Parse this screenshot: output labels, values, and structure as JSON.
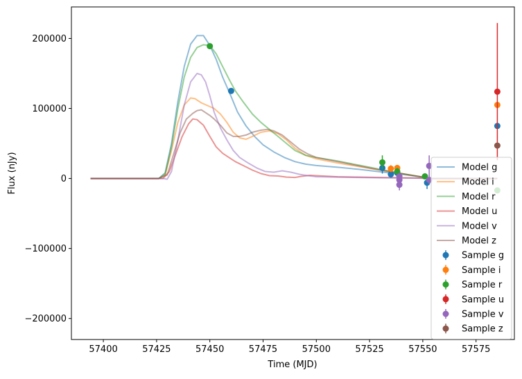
{
  "chart_data": {
    "type": "line",
    "title": "",
    "xlabel": "Time (MJD)",
    "ylabel": "Flux (nJy)",
    "xlim": [
      57385,
      57593
    ],
    "ylim": [
      -230000,
      245000
    ],
    "xticks": [
      57400,
      57425,
      57450,
      57475,
      57500,
      57525,
      57550,
      57575
    ],
    "yticks": [
      -200000,
      -100000,
      0,
      100000,
      200000
    ],
    "xtick_labels": [
      "57400",
      "57425",
      "57450",
      "57475",
      "57500",
      "57525",
      "57550",
      "57575"
    ],
    "ytick_labels": [
      "−200000",
      "−100000",
      "0",
      "100000",
      "200000"
    ],
    "grid": false,
    "legend_position": "lower-right",
    "colors": {
      "g": "#1f77b4",
      "i": "#ff7f0e",
      "r": "#2ca02c",
      "u": "#d62728",
      "v": "#9467bd",
      "z": "#8c564b"
    },
    "models": [
      {
        "name": "Model g",
        "band": "g",
        "points": [
          [
            57394,
            0
          ],
          [
            57426,
            0
          ],
          [
            57429,
            8000
          ],
          [
            57432,
            50000
          ],
          [
            57435,
            110000
          ],
          [
            57438,
            160000
          ],
          [
            57441,
            192000
          ],
          [
            57444,
            204000
          ],
          [
            57447,
            204000
          ],
          [
            57450,
            190000
          ],
          [
            57453,
            170000
          ],
          [
            57456,
            145000
          ],
          [
            57460,
            117000
          ],
          [
            57463,
            95000
          ],
          [
            57467,
            75000
          ],
          [
            57471,
            60000
          ],
          [
            57475,
            48000
          ],
          [
            57480,
            38000
          ],
          [
            57485,
            30000
          ],
          [
            57490,
            24000
          ],
          [
            57495,
            20500
          ],
          [
            57500,
            18500
          ],
          [
            57510,
            16000
          ],
          [
            57520,
            13000
          ],
          [
            57530,
            9500
          ],
          [
            57540,
            6000
          ],
          [
            57550,
            2000
          ],
          [
            57553,
            0
          ],
          [
            57585,
            0
          ]
        ]
      },
      {
        "name": "Model i",
        "band": "i",
        "points": [
          [
            57394,
            0
          ],
          [
            57426,
            0
          ],
          [
            57429,
            5000
          ],
          [
            57432,
            40000
          ],
          [
            57435,
            80000
          ],
          [
            57438,
            105000
          ],
          [
            57441,
            115000
          ],
          [
            57443,
            114000
          ],
          [
            57446,
            108000
          ],
          [
            57449,
            104000
          ],
          [
            57452,
            100000
          ],
          [
            57455,
            92000
          ],
          [
            57458,
            80000
          ],
          [
            57461,
            66000
          ],
          [
            57464,
            58000
          ],
          [
            57467,
            56000
          ],
          [
            57470,
            60000
          ],
          [
            57474,
            66000
          ],
          [
            57478,
            68000
          ],
          [
            57482,
            64000
          ],
          [
            57486,
            55000
          ],
          [
            57490,
            43000
          ],
          [
            57495,
            33000
          ],
          [
            57500,
            28000
          ],
          [
            57505,
            25000
          ],
          [
            57510,
            22000
          ],
          [
            57520,
            17000
          ],
          [
            57530,
            12000
          ],
          [
            57540,
            7000
          ],
          [
            57550,
            2000
          ],
          [
            57553,
            0
          ],
          [
            57585,
            0
          ]
        ]
      },
      {
        "name": "Model r",
        "band": "r",
        "points": [
          [
            57394,
            0
          ],
          [
            57426,
            0
          ],
          [
            57429,
            6000
          ],
          [
            57432,
            45000
          ],
          [
            57435,
            100000
          ],
          [
            57438,
            145000
          ],
          [
            57441,
            173000
          ],
          [
            57444,
            187000
          ],
          [
            57447,
            191000
          ],
          [
            57450,
            190000
          ],
          [
            57453,
            178000
          ],
          [
            57456,
            160000
          ],
          [
            57459,
            142000
          ],
          [
            57462,
            125000
          ],
          [
            57466,
            108000
          ],
          [
            57470,
            92000
          ],
          [
            57474,
            80000
          ],
          [
            57478,
            70000
          ],
          [
            57482,
            60000
          ],
          [
            57486,
            50000
          ],
          [
            57490,
            40000
          ],
          [
            57495,
            33000
          ],
          [
            57500,
            30000
          ],
          [
            57505,
            27500
          ],
          [
            57510,
            25000
          ],
          [
            57520,
            19000
          ],
          [
            57530,
            13000
          ],
          [
            57540,
            7000
          ],
          [
            57550,
            2000
          ],
          [
            57553,
            0
          ],
          [
            57585,
            0
          ]
        ]
      },
      {
        "name": "Model u",
        "band": "u",
        "points": [
          [
            57394,
            0
          ],
          [
            57428,
            0
          ],
          [
            57431,
            10000
          ],
          [
            57434,
            35000
          ],
          [
            57437,
            60000
          ],
          [
            57440,
            78000
          ],
          [
            57442,
            85000
          ],
          [
            57444,
            84000
          ],
          [
            57447,
            76000
          ],
          [
            57450,
            60000
          ],
          [
            57453,
            45000
          ],
          [
            57456,
            36000
          ],
          [
            57459,
            30000
          ],
          [
            57462,
            24000
          ],
          [
            57466,
            18000
          ],
          [
            57470,
            12000
          ],
          [
            57474,
            7000
          ],
          [
            57478,
            4000
          ],
          [
            57482,
            3500
          ],
          [
            57486,
            2000
          ],
          [
            57490,
            1500
          ],
          [
            57493,
            3000
          ],
          [
            57497,
            4500
          ],
          [
            57500,
            4000
          ],
          [
            57510,
            2500
          ],
          [
            57520,
            2000
          ],
          [
            57530,
            1500
          ],
          [
            57540,
            1000
          ],
          [
            57550,
            500
          ],
          [
            57553,
            0
          ],
          [
            57585,
            0
          ]
        ]
      },
      {
        "name": "Model v",
        "band": "v",
        "points": [
          [
            57394,
            0
          ],
          [
            57428,
            0
          ],
          [
            57430,
            -1000
          ],
          [
            57432,
            10000
          ],
          [
            57435,
            55000
          ],
          [
            57438,
            105000
          ],
          [
            57441,
            138000
          ],
          [
            57444,
            150000
          ],
          [
            57446,
            148000
          ],
          [
            57448,
            138000
          ],
          [
            57450,
            118000
          ],
          [
            57452,
            95000
          ],
          [
            57455,
            72000
          ],
          [
            57458,
            55000
          ],
          [
            57461,
            40000
          ],
          [
            57464,
            30000
          ],
          [
            57468,
            22000
          ],
          [
            57472,
            15000
          ],
          [
            57476,
            10000
          ],
          [
            57480,
            9000
          ],
          [
            57484,
            11000
          ],
          [
            57488,
            9000
          ],
          [
            57492,
            6000
          ],
          [
            57496,
            4000
          ],
          [
            57500,
            2500
          ],
          [
            57510,
            2000
          ],
          [
            57520,
            1500
          ],
          [
            57530,
            1000
          ],
          [
            57540,
            800
          ],
          [
            57550,
            400
          ],
          [
            57553,
            0
          ],
          [
            57585,
            0
          ]
        ]
      },
      {
        "name": "Model z",
        "band": "z",
        "points": [
          [
            57394,
            0
          ],
          [
            57426,
            0
          ],
          [
            57430,
            5000
          ],
          [
            57433,
            35000
          ],
          [
            57436,
            65000
          ],
          [
            57439,
            85000
          ],
          [
            57442,
            93000
          ],
          [
            57444,
            97000
          ],
          [
            57446,
            98000
          ],
          [
            57448,
            94000
          ],
          [
            57450,
            90000
          ],
          [
            57452,
            85000
          ],
          [
            57455,
            76000
          ],
          [
            57458,
            65000
          ],
          [
            57461,
            60000
          ],
          [
            57464,
            60000
          ],
          [
            57467,
            62000
          ],
          [
            57470,
            66000
          ],
          [
            57474,
            69000
          ],
          [
            57477,
            70000
          ],
          [
            57480,
            68000
          ],
          [
            57484,
            62000
          ],
          [
            57488,
            52000
          ],
          [
            57492,
            42000
          ],
          [
            57496,
            35000
          ],
          [
            57500,
            30000
          ],
          [
            57510,
            24000
          ],
          [
            57520,
            18000
          ],
          [
            57530,
            12000
          ],
          [
            57540,
            7000
          ],
          [
            57550,
            2000
          ],
          [
            57553,
            0
          ],
          [
            57585,
            0
          ]
        ]
      }
    ],
    "samples": [
      {
        "name": "Sample g",
        "band": "g",
        "points": [
          [
            57460,
            125000,
            0
          ],
          [
            57531,
            15000,
            8000
          ],
          [
            57535,
            6000,
            5000
          ],
          [
            57538,
            8000,
            4000
          ],
          [
            57552,
            -6000,
            9000
          ],
          [
            57585,
            75000,
            0
          ]
        ]
      },
      {
        "name": "Sample i",
        "band": "i",
        "points": [
          [
            57535,
            14000,
            5000
          ],
          [
            57538,
            15000,
            4000
          ],
          [
            57585,
            105000,
            0
          ]
        ]
      },
      {
        "name": "Sample r",
        "band": "r",
        "points": [
          [
            57450,
            189000,
            0
          ],
          [
            57531,
            23000,
            10000
          ],
          [
            57538,
            10000,
            5000
          ],
          [
            57551,
            3000,
            4000
          ],
          [
            57585,
            -17000,
            0
          ]
        ]
      },
      {
        "name": "Sample u",
        "band": "u",
        "points": [
          [
            57585,
            124000,
            98000
          ]
        ]
      },
      {
        "name": "Sample v",
        "band": "v",
        "points": [
          [
            57539,
            -9000,
            8000
          ],
          [
            57539,
            -2000,
            5000
          ],
          [
            57539,
            3000,
            5000
          ],
          [
            57553,
            18000,
            15000
          ],
          [
            57553,
            -2000,
            6000
          ]
        ]
      },
      {
        "name": "Sample z",
        "band": "z",
        "points": [
          [
            57585,
            47000,
            0
          ]
        ]
      }
    ]
  }
}
